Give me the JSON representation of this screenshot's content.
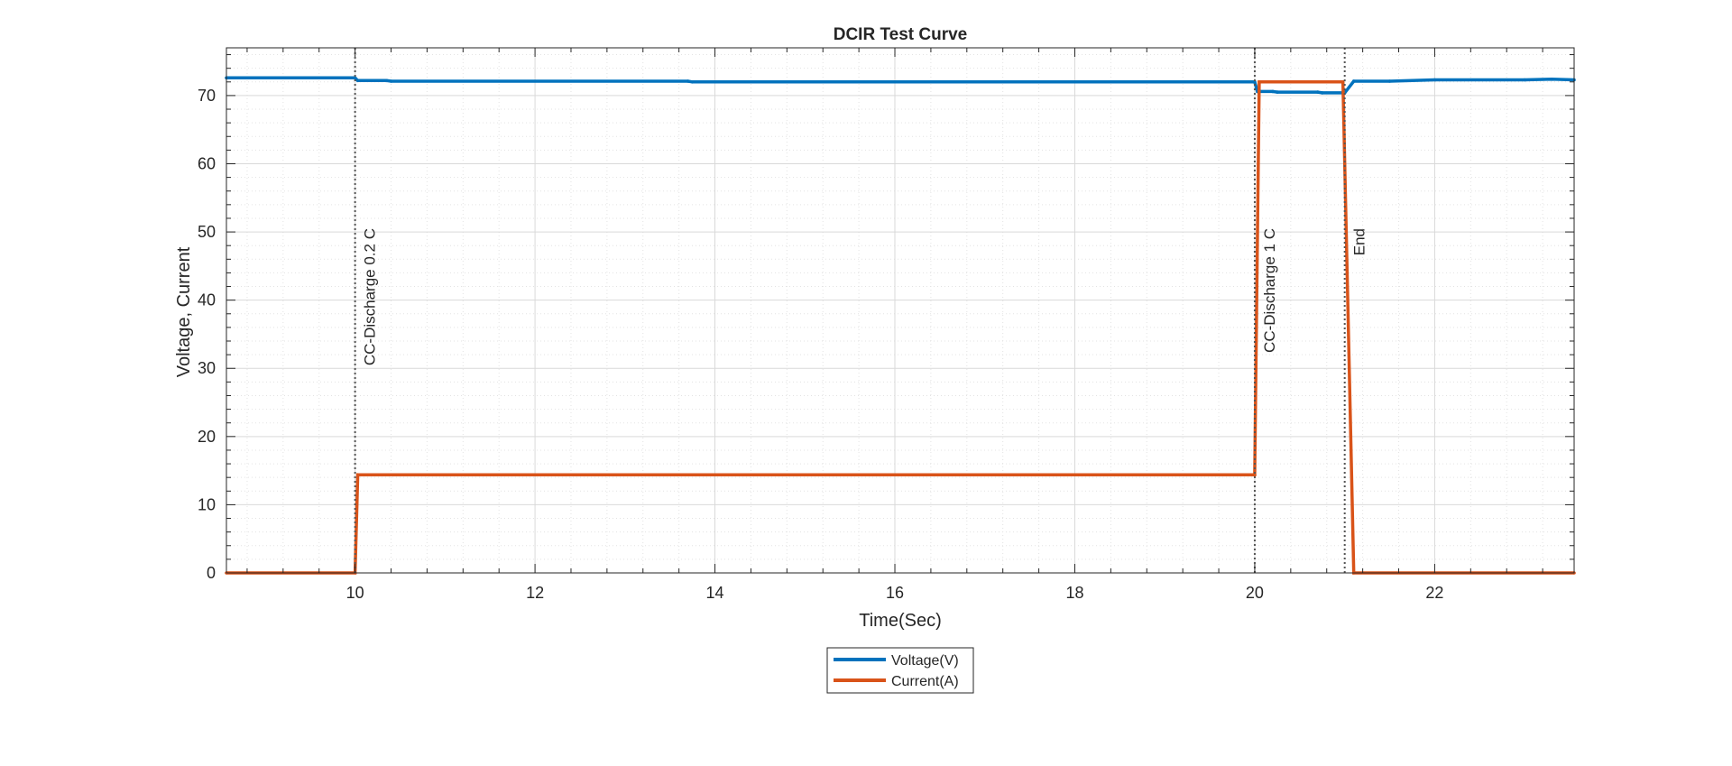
{
  "chart_data": {
    "type": "line",
    "title": "DCIR Test Curve",
    "xlabel": "Time(Sec)",
    "ylabel": "Voltage, Current",
    "xlim": [
      8.57,
      23.55
    ],
    "ylim": [
      0,
      77
    ],
    "xticks": [
      10,
      12,
      14,
      16,
      18,
      20,
      22
    ],
    "yticks": [
      0,
      10,
      20,
      30,
      40,
      50,
      60,
      70
    ],
    "grid": true,
    "minor_grid": true,
    "legend_position": "bottom-center",
    "series": [
      {
        "name": "Voltage(V)",
        "color": "#0072BD",
        "points": [
          [
            8.57,
            72.6
          ],
          [
            10.0,
            72.6
          ],
          [
            10.03,
            72.2
          ],
          [
            10.35,
            72.2
          ],
          [
            10.4,
            72.1
          ],
          [
            13.7,
            72.1
          ],
          [
            13.75,
            72.0
          ],
          [
            20.0,
            72.0
          ],
          [
            20.03,
            70.6
          ],
          [
            20.2,
            70.6
          ],
          [
            20.25,
            70.5
          ],
          [
            20.7,
            70.5
          ],
          [
            20.75,
            70.4
          ],
          [
            21.0,
            70.4
          ],
          [
            21.1,
            72.1
          ],
          [
            21.5,
            72.1
          ],
          [
            22.0,
            72.3
          ],
          [
            23.0,
            72.3
          ],
          [
            23.3,
            72.4
          ],
          [
            23.55,
            72.3
          ]
        ]
      },
      {
        "name": "Current(A)",
        "color": "#D95319",
        "points": [
          [
            8.57,
            0
          ],
          [
            10.0,
            0
          ],
          [
            10.03,
            14.4
          ],
          [
            20.0,
            14.4
          ],
          [
            20.05,
            72.0
          ],
          [
            20.98,
            72.0
          ],
          [
            21.1,
            0
          ],
          [
            23.55,
            0
          ]
        ]
      }
    ],
    "event_lines": [
      {
        "x": 10.0,
        "label": "CC-Discharge 0.2 C"
      },
      {
        "x": 20.0,
        "label": "CC-Discharge 1 C"
      },
      {
        "x": 21.0,
        "label": "End"
      }
    ]
  }
}
